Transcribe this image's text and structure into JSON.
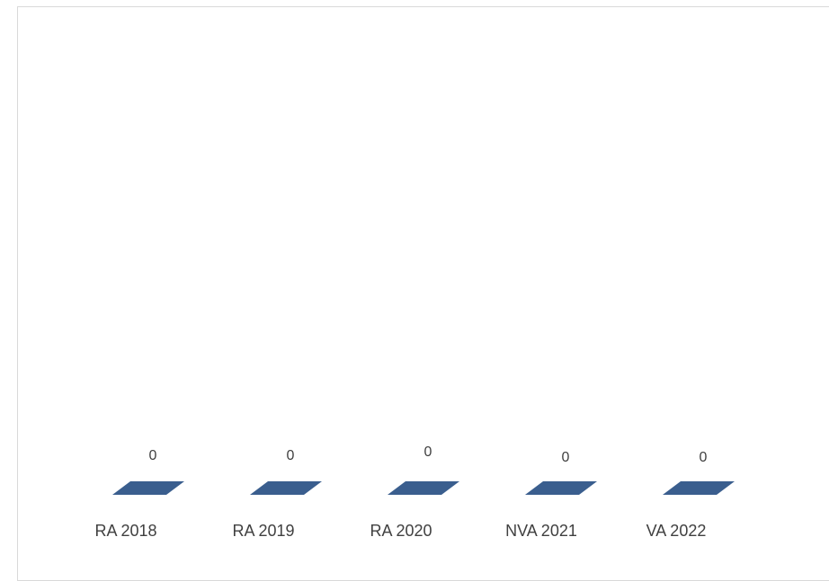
{
  "chart_data": {
    "type": "bar",
    "style": "3d",
    "categories": [
      "RA 2018",
      "RA 2019",
      "RA 2020",
      "NVA 2021",
      "VA 2022"
    ],
    "values": [
      0,
      0,
      0,
      0,
      0
    ],
    "data_labels": [
      "0",
      "0",
      "0",
      "0",
      "0"
    ],
    "title": "",
    "xlabel": "",
    "ylabel": "",
    "grid": false,
    "legend": "none",
    "colors": {
      "bar": "#3A5E8E",
      "text": "#404040",
      "border": "#D9D9D9"
    }
  }
}
